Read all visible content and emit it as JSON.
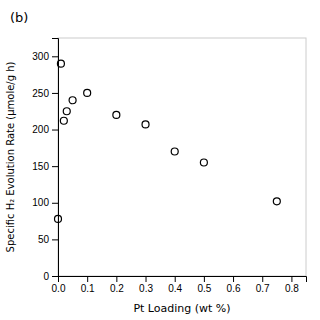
{
  "chart_data": {
    "type": "scatter",
    "x": [
      0.0,
      0.01,
      0.02,
      0.03,
      0.05,
      0.1,
      0.2,
      0.3,
      0.4,
      0.5,
      0.75
    ],
    "y": [
      78,
      290,
      212,
      225,
      240,
      250,
      220,
      207,
      170,
      155,
      102
    ],
    "x_label": "Pt Loading (wt %)",
    "y_label": "Specific H₂ Evolution Rate (μmole/g h)",
    "annotations": [
      "(b)"
    ],
    "xlim": [
      0,
      0.85
    ],
    "ylim": [
      0,
      325
    ],
    "xticks": [
      {
        "value": 0.0,
        "label": "0.0"
      },
      0.1,
      0.2,
      0.3,
      0.4,
      0.5,
      0.6,
      0.7,
      0.8
    ],
    "yticks": [
      0,
      50,
      100,
      150,
      200,
      250,
      300
    ],
    "color": "#000000",
    "marker": "open-circle",
    "grid": false
  }
}
